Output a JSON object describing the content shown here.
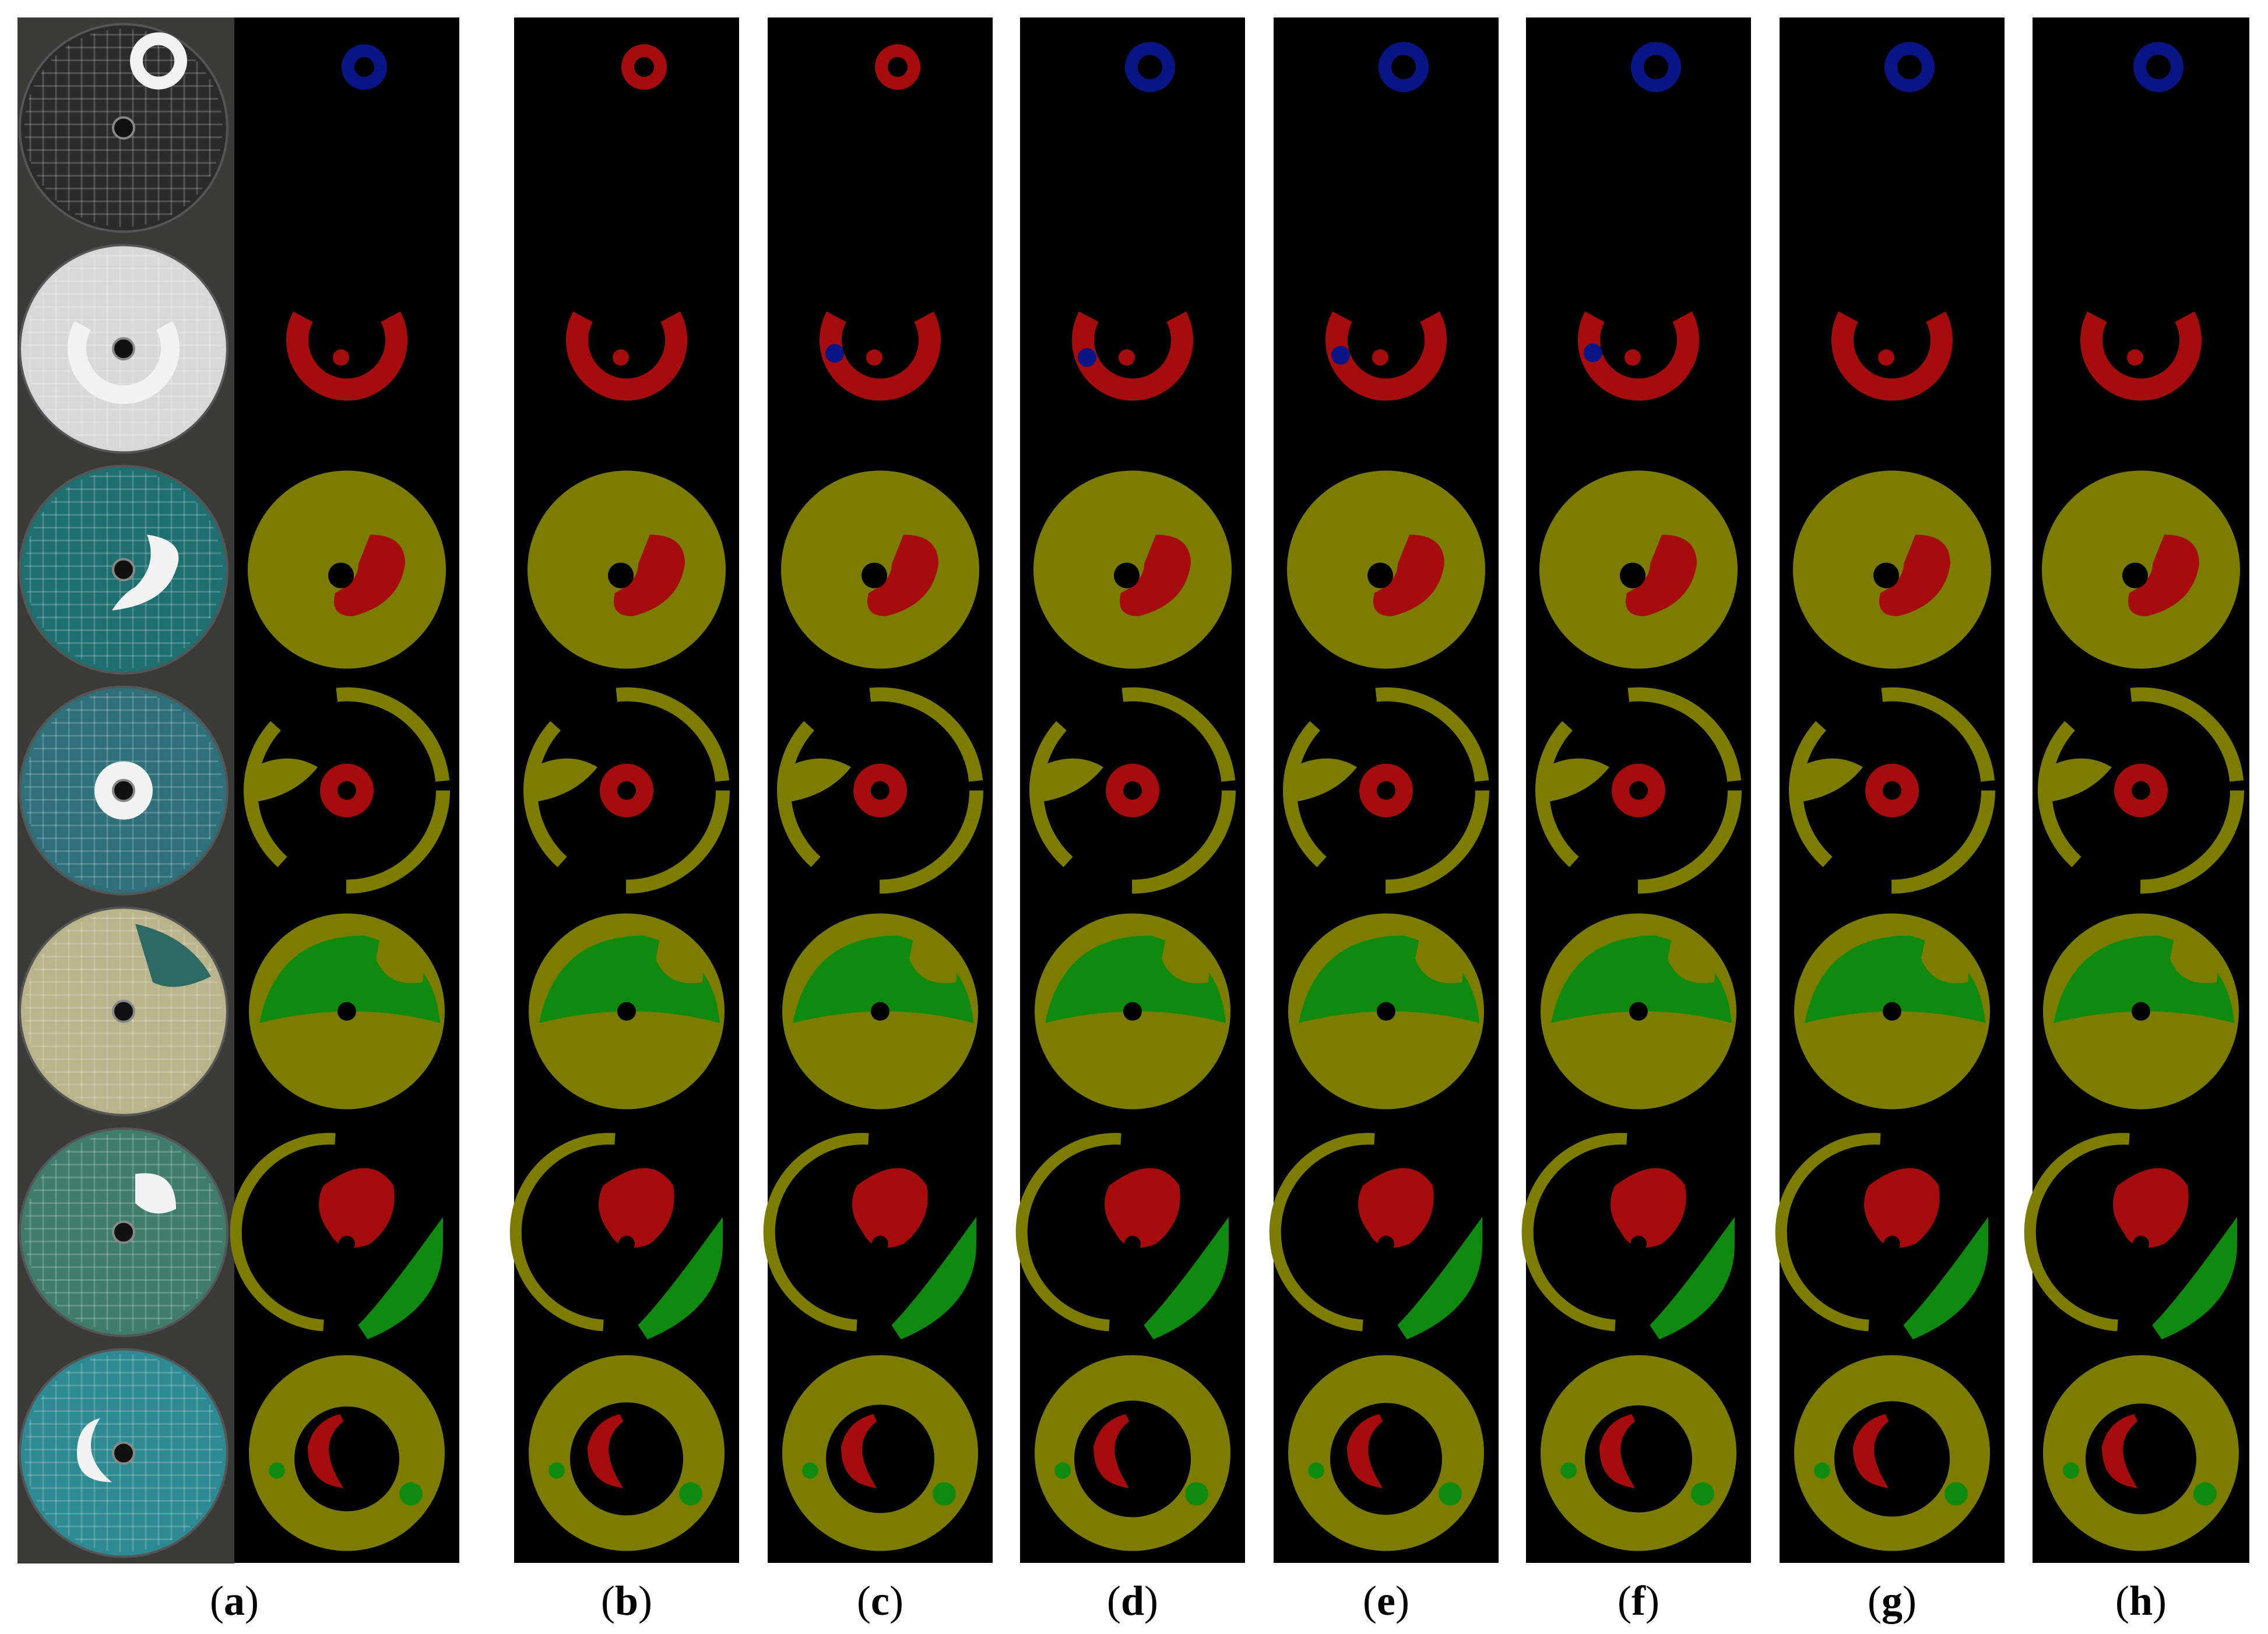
{
  "figure": {
    "panel_labels": [
      "a",
      "b",
      "c",
      "d",
      "e",
      "f",
      "g",
      "h"
    ]
  },
  "colors": {
    "background": "#000000",
    "blue": "#0a1585",
    "red": "#a50c0c",
    "olive": "#7c7d00",
    "green": "#0f8a0f",
    "disc_dark": "#2a2a2a",
    "disc_teal": "#1f6e70",
    "disc_light": "#c9c9c0",
    "mask_white": "#f2f2f2"
  }
}
